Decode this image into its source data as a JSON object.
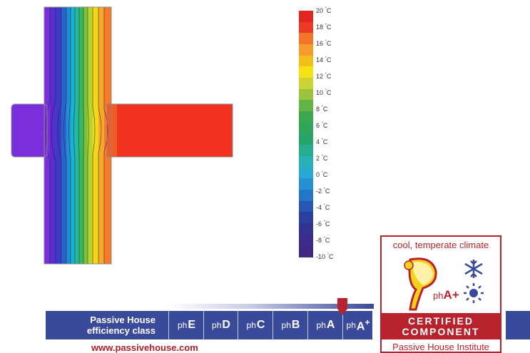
{
  "legend": {
    "unit": "°C",
    "ticks": [
      "20",
      "18",
      "16",
      "14",
      "12",
      "10",
      "8",
      "6",
      "4",
      "2",
      "0",
      "-2",
      "-4",
      "-6",
      "-8",
      "-10"
    ],
    "colors": [
      "#e32420",
      "#ee3a24",
      "#f4742a",
      "#f79b2a",
      "#f0c019",
      "#f5e212",
      "#cbd432",
      "#9ac43b",
      "#63b446",
      "#3ba84f",
      "#2ea65a",
      "#25a56c",
      "#26ad8f",
      "#28b2b7",
      "#29a8d6",
      "#2591d2",
      "#2476c7",
      "#2756b4",
      "#2b3f9f",
      "#323390",
      "#3a2b8c",
      "#402884"
    ]
  },
  "efficiency": {
    "heading_line1": "Passive House",
    "heading_line2": "efficiency class",
    "ph_prefix": "ph",
    "classes": [
      "E",
      "D",
      "C",
      "B",
      "A",
      "A+"
    ],
    "current": "A+"
  },
  "certificate": {
    "climate": "cool, temperate climate",
    "line1": "CERTIFIED",
    "line2": "COMPONENT",
    "institute": "Passive House Institute",
    "grade_prefix": "ph",
    "grade": "A+"
  },
  "footer": {
    "url": "www.passivehouse.com"
  }
}
